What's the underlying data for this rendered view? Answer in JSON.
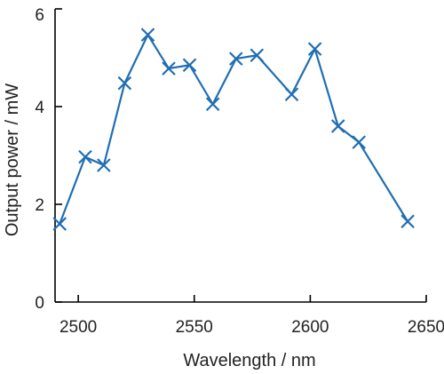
{
  "chart_data": {
    "type": "line",
    "title": "",
    "xlabel": "Wavelength / nm",
    "ylabel": "Output power / mW",
    "xlim": [
      2490,
      2650
    ],
    "ylim": [
      0,
      6
    ],
    "xticks": [
      2500,
      2550,
      2600,
      2650
    ],
    "yticks": [
      0,
      2,
      4,
      6
    ],
    "x_tick_labels": [
      "2500",
      "2550",
      "2600",
      "2650"
    ],
    "y_tick_labels": [
      "0",
      "2",
      "4",
      "6"
    ],
    "grid": false,
    "legend": "none",
    "series": [
      {
        "color": "#1f6eb3",
        "marker": "x",
        "x": [
          2492,
          2503,
          2511,
          2520,
          2530,
          2539,
          2548,
          2558,
          2568,
          2577,
          2592,
          2602,
          2612,
          2621,
          2642
        ],
        "y": [
          1.6,
          2.97,
          2.8,
          4.48,
          5.47,
          4.78,
          4.85,
          4.05,
          4.98,
          5.05,
          4.25,
          5.18,
          3.6,
          3.27,
          1.65
        ]
      }
    ]
  }
}
